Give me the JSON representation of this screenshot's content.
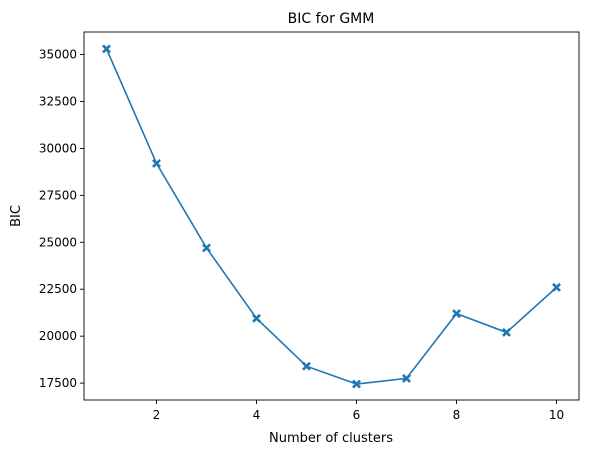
{
  "chart_data": {
    "type": "line",
    "title": "BIC for GMM",
    "xlabel": "Number of clusters",
    "ylabel": "BIC",
    "xlim": [
      0.55,
      10.45
    ],
    "ylim": [
      16600,
      36200
    ],
    "xticks": [
      2,
      4,
      6,
      8,
      10
    ],
    "yticks": [
      17500,
      20000,
      22500,
      25000,
      27500,
      30000,
      32500,
      35000
    ],
    "grid": false,
    "series": [
      {
        "color": "#1f77b4",
        "marker": "X",
        "x": [
          1,
          2,
          3,
          4,
          5,
          6,
          7,
          8,
          9,
          10
        ],
        "values": [
          35300,
          29200,
          24700,
          20950,
          18400,
          17450,
          17750,
          21200,
          20200,
          22600
        ]
      }
    ]
  }
}
